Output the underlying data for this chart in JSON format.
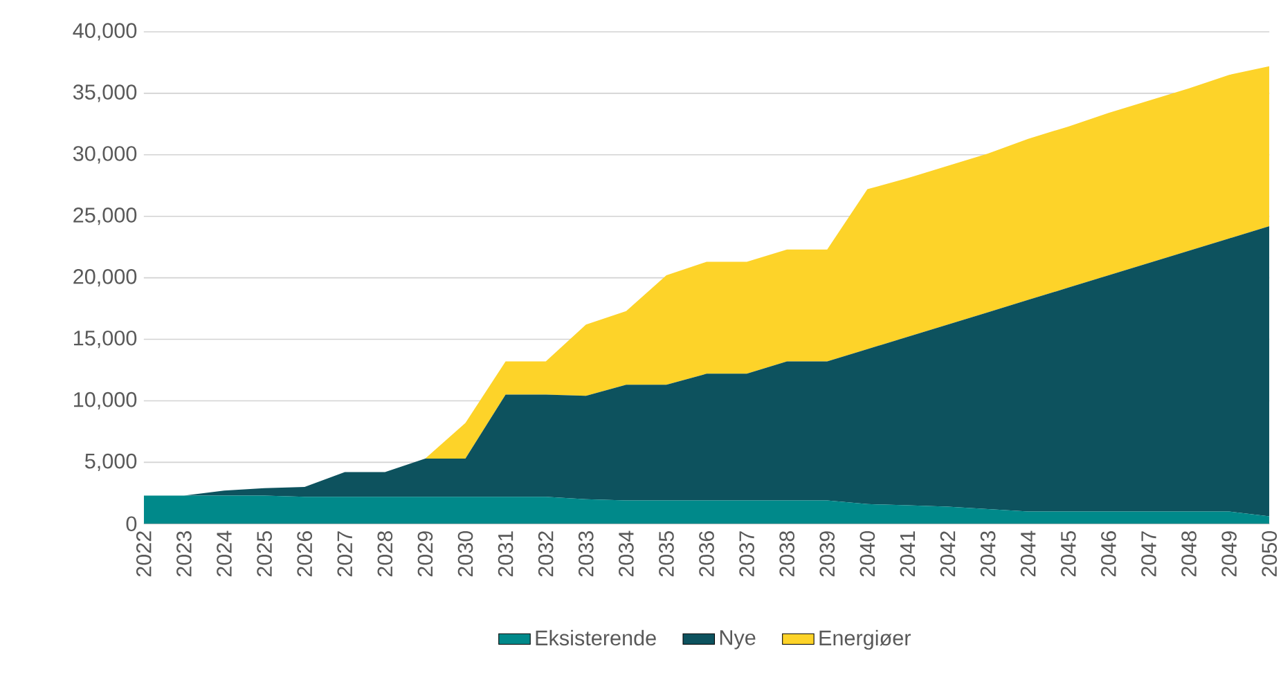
{
  "chart_data": {
    "type": "area",
    "stacked": true,
    "categories": [
      "2022",
      "2023",
      "2024",
      "2025",
      "2026",
      "2027",
      "2028",
      "2029",
      "2030",
      "2031",
      "2032",
      "2033",
      "2034",
      "2035",
      "2036",
      "2037",
      "2038",
      "2039",
      "2040",
      "2041",
      "2042",
      "2043",
      "2044",
      "2045",
      "2046",
      "2047",
      "2048",
      "2049",
      "2050"
    ],
    "series": [
      {
        "name": "Eksisterende",
        "color": "#00898a",
        "values": [
          2300,
          2300,
          2300,
          2300,
          2200,
          2200,
          2200,
          2200,
          2200,
          2200,
          2200,
          2000,
          1900,
          1900,
          1900,
          1900,
          1900,
          1900,
          1600,
          1500,
          1400,
          1200,
          1000,
          1000,
          1000,
          1000,
          1000,
          1000,
          600
        ]
      },
      {
        "name": "Nye",
        "color": "#0d525e",
        "values": [
          0,
          0,
          400,
          600,
          800,
          2000,
          2000,
          3100,
          3100,
          8300,
          8300,
          8400,
          9400,
          9400,
          10300,
          10300,
          11300,
          11300,
          12600,
          13700,
          14800,
          16000,
          17200,
          18200,
          19200,
          20200,
          21200,
          22200,
          23600
        ]
      },
      {
        "name": "Energiøer",
        "color": "#fdd329",
        "values": [
          0,
          0,
          0,
          0,
          0,
          0,
          0,
          0,
          2900,
          2700,
          2700,
          5800,
          6000,
          8900,
          9100,
          9100,
          9100,
          9100,
          13000,
          12900,
          12900,
          12900,
          13100,
          13100,
          13200,
          13200,
          13200,
          13300,
          13000
        ]
      }
    ],
    "ylim": [
      0,
      40000
    ],
    "yticks": [
      {
        "value": 0,
        "label": "0"
      },
      {
        "value": 5000,
        "label": "5,000"
      },
      {
        "value": 10000,
        "label": "10,000"
      },
      {
        "value": 15000,
        "label": "15,000"
      },
      {
        "value": 20000,
        "label": "20,000"
      },
      {
        "value": 25000,
        "label": "25,000"
      },
      {
        "value": 30000,
        "label": "30,000"
      },
      {
        "value": 35000,
        "label": "35,000"
      },
      {
        "value": 40000,
        "label": "40,000"
      }
    ],
    "grid": "y",
    "legend": "bottom"
  }
}
